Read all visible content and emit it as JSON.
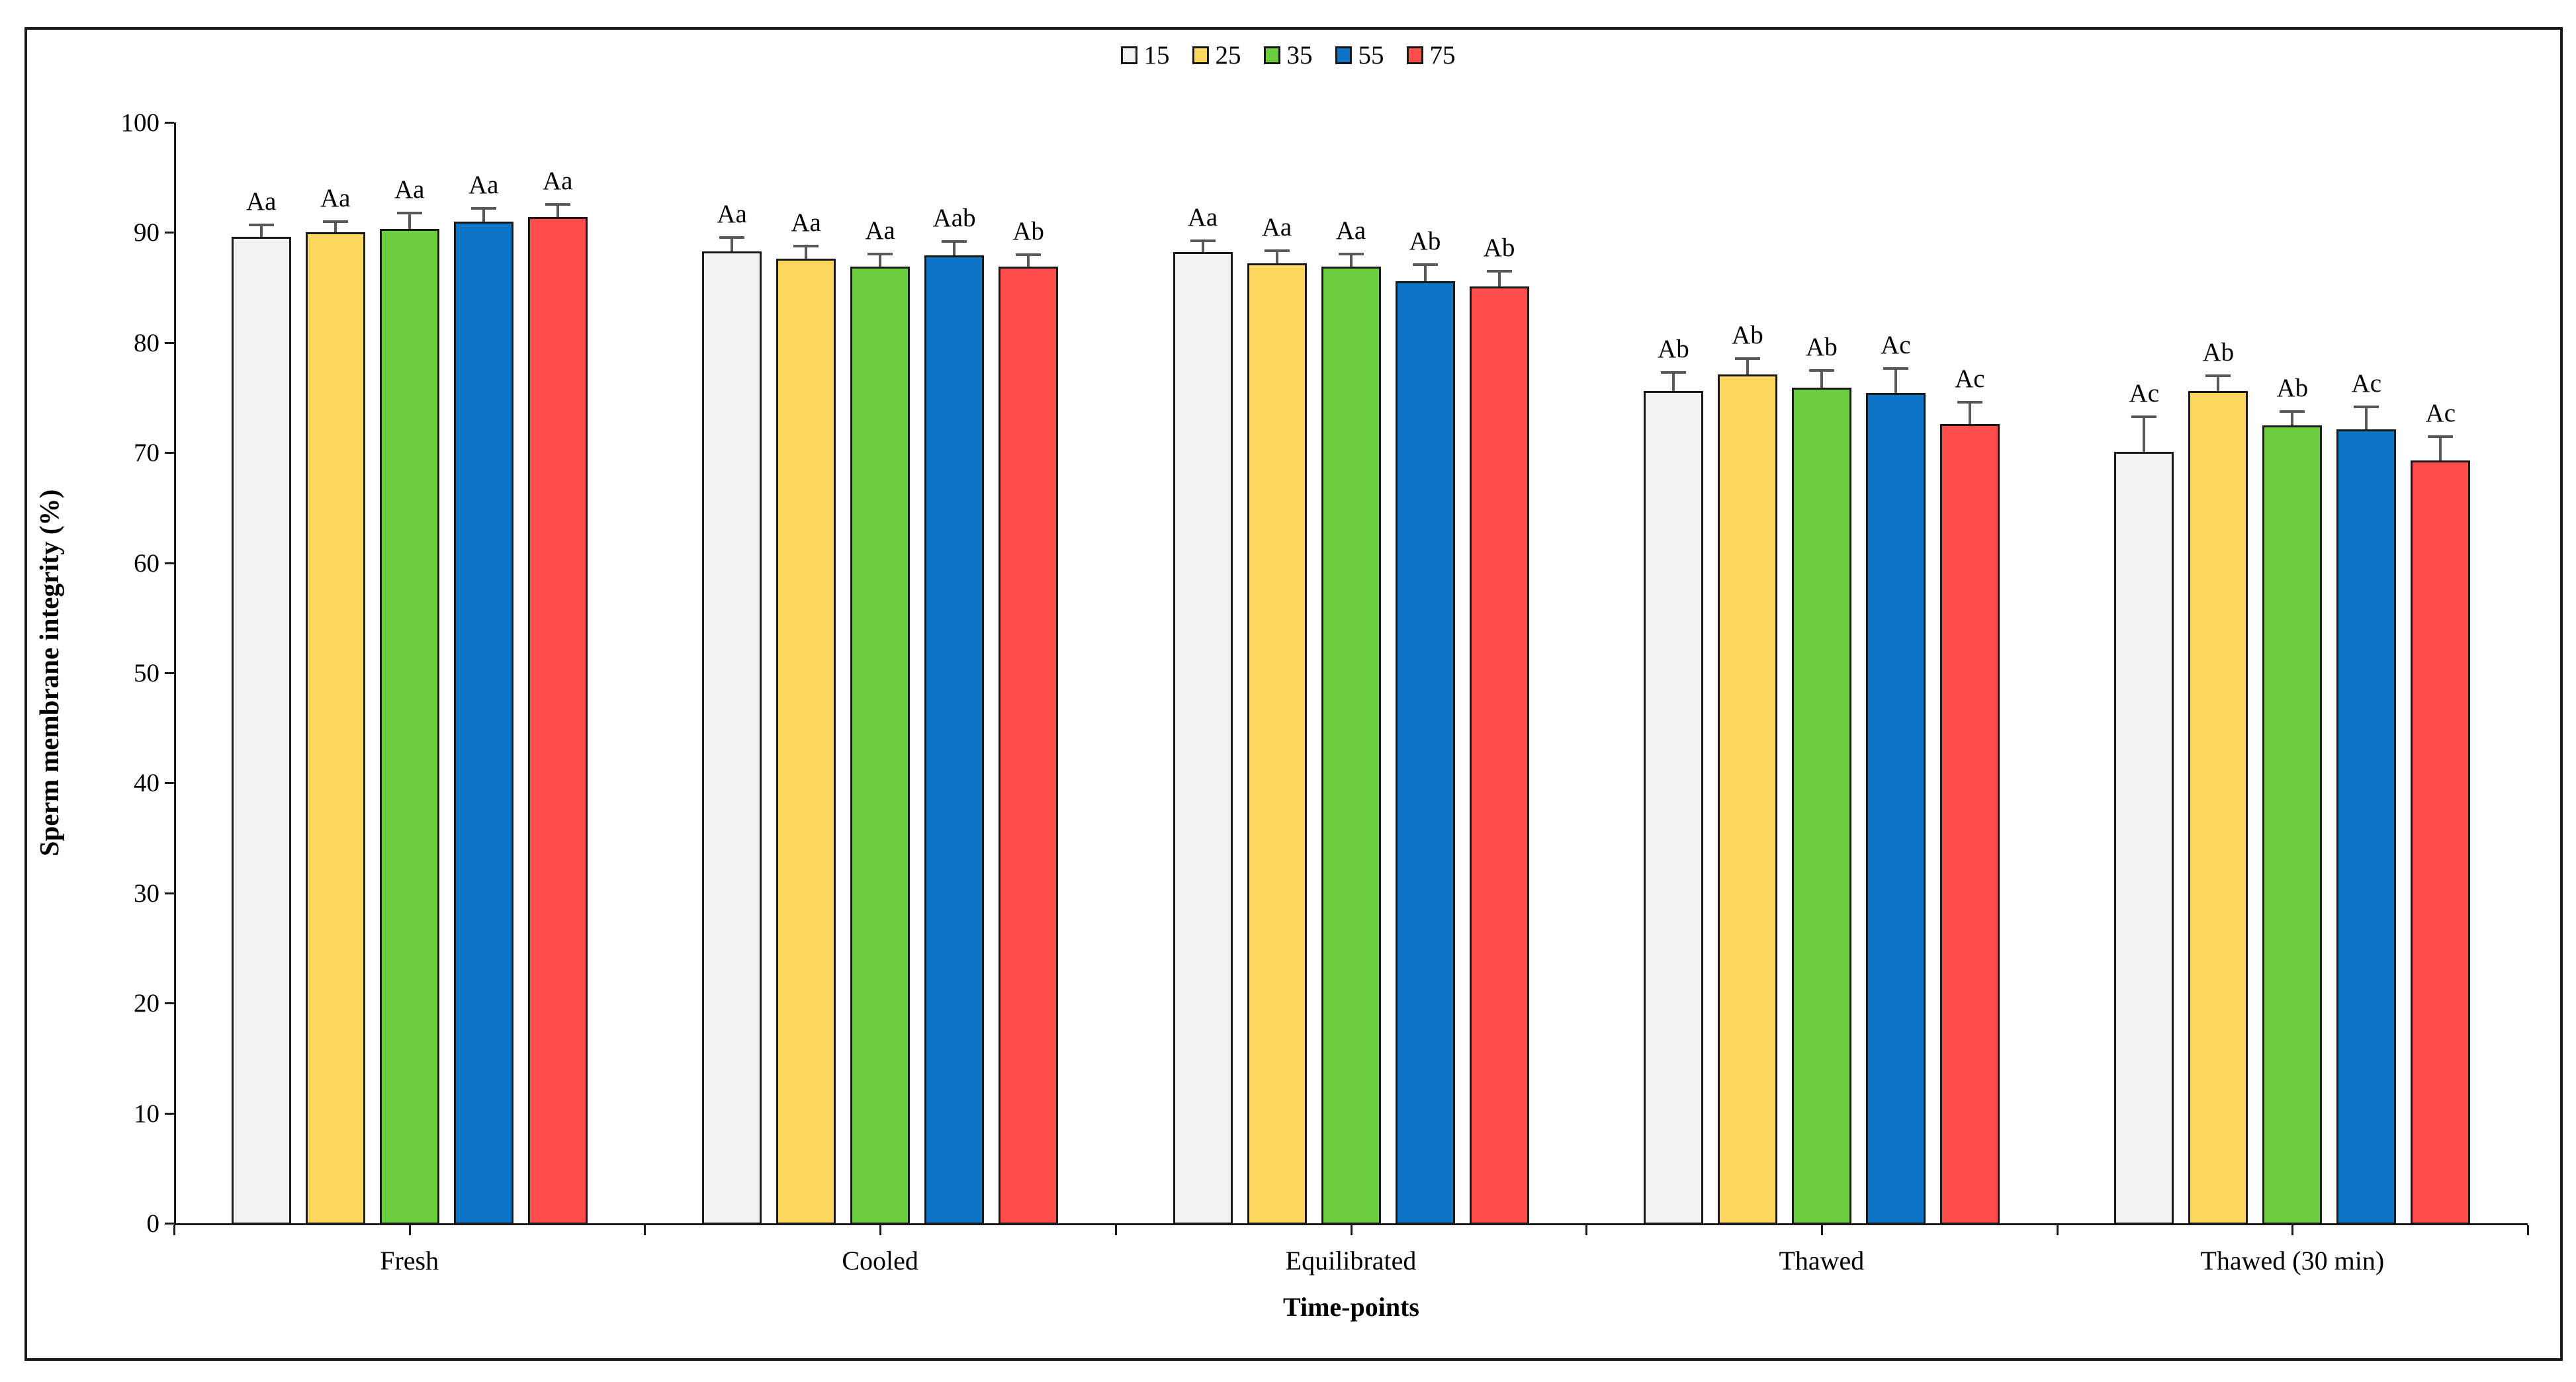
{
  "chart_data": {
    "type": "bar",
    "title": "",
    "xlabel": "Time-points",
    "ylabel": "Sperm membrane integrity (%)",
    "ylim": [
      0,
      100
    ],
    "ytick_step": 10,
    "grid": false,
    "legend_position": "top-center",
    "error_bars": "upper SEM whiskers with caps",
    "categories": [
      "Fresh",
      "Cooled",
      "Equilibrated",
      "Thawed",
      "Thawed (30 min)"
    ],
    "series": [
      {
        "name": "15",
        "color": "#F2F2F2",
        "values": [
          89.6,
          88.3,
          88.2,
          75.6,
          70.1
        ],
        "errors": [
          1.0,
          1.2,
          1.0,
          1.6,
          3.1
        ],
        "labels": [
          "Aa",
          "Aa",
          "Aa",
          "Ab",
          "Ac"
        ]
      },
      {
        "name": "25",
        "color": "#FFD75E",
        "values": [
          90.0,
          87.6,
          87.2,
          77.1,
          75.6
        ],
        "errors": [
          0.9,
          1.1,
          1.1,
          1.4,
          1.3
        ],
        "labels": [
          "Aa",
          "Aa",
          "Aa",
          "Ab",
          "Ab"
        ]
      },
      {
        "name": "35",
        "color": "#6BCE3C",
        "values": [
          90.3,
          86.9,
          86.9,
          75.9,
          72.5
        ],
        "errors": [
          1.4,
          1.1,
          1.1,
          1.5,
          1.2
        ],
        "labels": [
          "Aa",
          "Aa",
          "Aa",
          "Ab",
          "Ab"
        ]
      },
      {
        "name": "55",
        "color": "#0B74C5",
        "values": [
          91.0,
          87.9,
          85.6,
          75.4,
          72.1
        ],
        "errors": [
          1.1,
          1.2,
          1.4,
          2.2,
          2.0
        ],
        "labels": [
          "Aa",
          "Aab",
          "Ab",
          "Ac",
          "Ac"
        ]
      },
      {
        "name": "75",
        "color": "#FD4E4B",
        "values": [
          91.4,
          86.9,
          85.1,
          72.6,
          69.3
        ],
        "errors": [
          1.1,
          1.0,
          1.3,
          1.9,
          2.1
        ],
        "labels": [
          "Aa",
          "Ab",
          "Ab",
          "Ac",
          "Ac"
        ]
      }
    ],
    "bar_border_color": "#1a1a1a",
    "error_bar_color": "#595959"
  }
}
